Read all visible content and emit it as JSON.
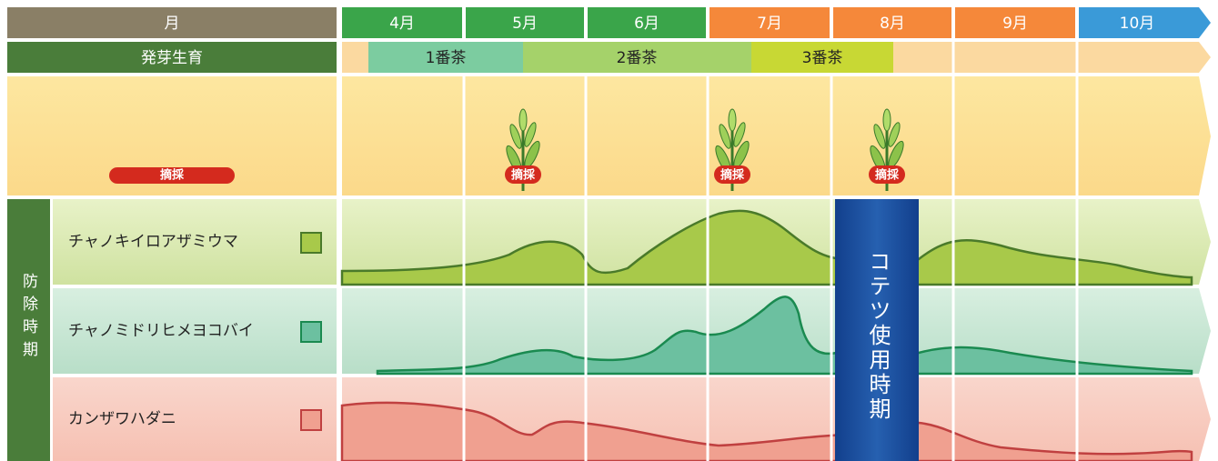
{
  "header": {
    "month_label": "月",
    "months": [
      "4月",
      "5月",
      "6月",
      "7月",
      "8月",
      "9月",
      "10月"
    ]
  },
  "growth": {
    "label": "発芽生育",
    "tea_periods": [
      "1番茶",
      "2番茶",
      "3番茶"
    ]
  },
  "harvest_label": "摘採",
  "control": {
    "label": "防除時期",
    "pests": [
      "チャノキイロアザミウマ",
      "チャノミドリヒメヨコバイ",
      "カンザワハダニ"
    ],
    "product_period": "コテツ使用時期"
  }
}
